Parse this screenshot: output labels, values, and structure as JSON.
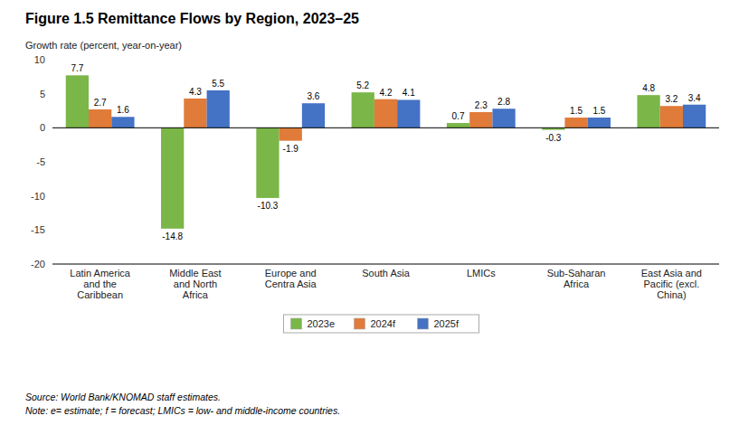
{
  "chart_data": {
    "type": "bar",
    "title": "Figure 1.5 Remittance Flows by Region, 2023–25",
    "ylabel": "Growth rate (percent, year-on-year)",
    "categories": [
      "Latin America\nand the\nCaribbean",
      "Middle East\nand North\nAfrica",
      "Europe and\nCentra Asia",
      "South Asia",
      "LMICs",
      "Sub-Saharan\nAfrica",
      "East Asia and\nPacific (excl.\nChina)"
    ],
    "series": [
      {
        "name": "2023e",
        "color": "#7ab648",
        "values": [
          7.7,
          -14.8,
          -10.3,
          5.2,
          0.7,
          -0.3,
          4.8
        ]
      },
      {
        "name": "2024f",
        "color": "#e07b39",
        "values": [
          2.7,
          4.3,
          -1.9,
          4.2,
          2.3,
          1.5,
          3.2
        ]
      },
      {
        "name": "2025f",
        "color": "#4472c4",
        "values": [
          1.6,
          5.5,
          3.6,
          4.1,
          2.8,
          1.5,
          3.4
        ]
      }
    ],
    "ylim": [
      -20,
      10
    ],
    "yticks": [
      -20,
      -15,
      -10,
      -5,
      0,
      5,
      10
    ],
    "grid": false,
    "legend": "bottom",
    "data_labels": true,
    "annotations": [
      "Source: World Bank/KNOMAD staff estimates.",
      "Note: e= estimate; f = forecast; LMICs = low- and middle-income countries."
    ]
  }
}
